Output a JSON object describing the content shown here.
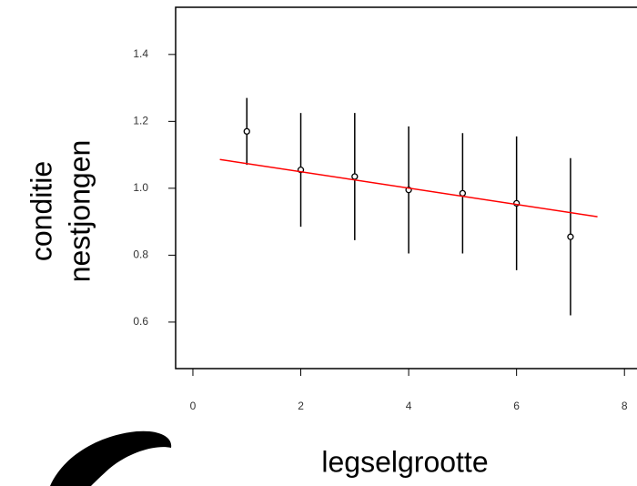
{
  "chart_data": {
    "type": "errorbar",
    "xlabel": "legselgrootte",
    "ylabel": [
      "conditie",
      "nestjongen"
    ],
    "x": [
      1,
      2,
      3,
      4,
      5,
      6,
      7
    ],
    "values": [
      1.17,
      1.055,
      1.035,
      0.995,
      0.985,
      0.955,
      0.855
    ],
    "errors": [
      0.1,
      0.17,
      0.19,
      0.19,
      0.18,
      0.2,
      0.235
    ],
    "color": "#000000",
    "fit": {
      "x": [
        0.5,
        7.5
      ],
      "y": [
        1.086,
        0.915
      ],
      "color": "#ff0000"
    },
    "xlim": [
      -0.32,
      8.3
    ],
    "ylim": [
      0.461,
      1.541
    ],
    "xticks": [
      0,
      2,
      4,
      6,
      8
    ],
    "yticks": [
      {
        "value": 1.4,
        "label": "1.4"
      },
      {
        "value": 1.2,
        "label": "1.2"
      },
      {
        "value": 1,
        "label": "1.0"
      },
      {
        "value": 0.8,
        "label": "0.8"
      },
      {
        "value": 0.6,
        "label": "0.6"
      }
    ]
  }
}
